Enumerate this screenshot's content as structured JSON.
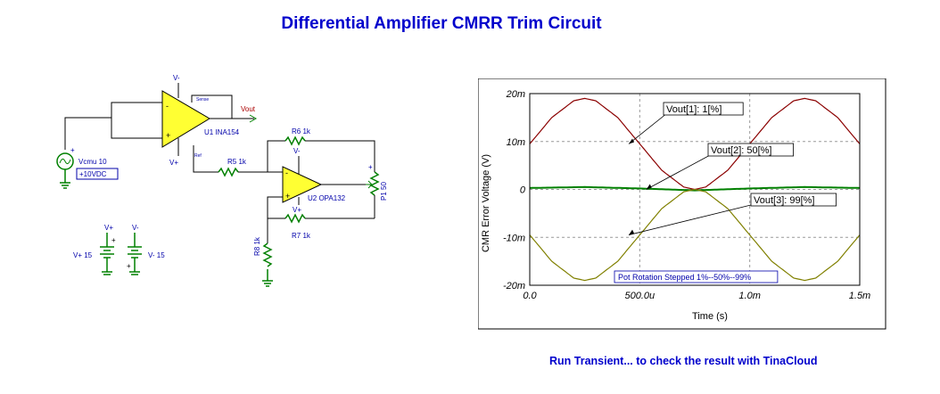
{
  "title": "Differential Amplifier CMRR Trim Circuit",
  "footer": "Run Transient... to check the result with TinaCloud",
  "schematic": {
    "vcm": {
      "name": "Vcmu 10",
      "dc": "+10VDC"
    },
    "u1": {
      "name": "U1 INA154",
      "vminus": "V-",
      "vplus": "V+",
      "sense": "Sense",
      "ref": "Ref"
    },
    "u2": {
      "name": "U2 OPA132",
      "vminus": "V-",
      "vplus": "V+"
    },
    "vout": "Vout",
    "r5": "R5 1k",
    "r6": "R6 1k",
    "r7": "R7 1k",
    "r8": "R8 1k",
    "p1": "P1 50",
    "vpos": {
      "label": "V+",
      "name": "V+ 15"
    },
    "vneg": {
      "label": "V-",
      "name": "V- 15"
    }
  },
  "chart_data": {
    "type": "line",
    "xlabel": "Time (s)",
    "ylabel": "CMR Error Voltage (V)",
    "xlim": [
      0,
      0.0015
    ],
    "ylim": [
      -0.02,
      0.02
    ],
    "xticks": [
      "0.0",
      "500.0u",
      "1.0m",
      "1.5m"
    ],
    "yticks": [
      "20m",
      "10m",
      "0",
      "-10m",
      "-20m"
    ],
    "grid": true,
    "series": [
      {
        "name": "Vout[1]: 1[%]",
        "color": "#8b0000",
        "x": [
          0,
          0.0001,
          0.0002,
          0.00025,
          0.0003,
          0.0004,
          0.0005,
          0.0006,
          0.0007,
          0.00075,
          0.0008,
          0.0009,
          0.001,
          0.0011,
          0.0012,
          0.00125,
          0.0013,
          0.0014,
          0.0015
        ],
        "y": [
          0.0095,
          0.015,
          0.0185,
          0.019,
          0.0185,
          0.015,
          0.0095,
          0.004,
          0.0005,
          0.0,
          0.0005,
          0.004,
          0.0095,
          0.015,
          0.0185,
          0.019,
          0.0185,
          0.015,
          0.0095
        ]
      },
      {
        "name": "Vout[2]: 50[%]",
        "color": "#008000",
        "x": [
          0,
          0.00025,
          0.0005,
          0.00075,
          0.001,
          0.00125,
          0.0015
        ],
        "y": [
          0.0003,
          0.0005,
          0.0002,
          -0.0002,
          0.0002,
          0.0005,
          0.0003
        ]
      },
      {
        "name": "Vout[3]: 99[%]",
        "color": "#808000",
        "x": [
          0,
          0.0001,
          0.0002,
          0.00025,
          0.0003,
          0.0004,
          0.0005,
          0.0006,
          0.0007,
          0.00075,
          0.0008,
          0.0009,
          0.001,
          0.0011,
          0.0012,
          0.00125,
          0.0013,
          0.0014,
          0.0015
        ],
        "y": [
          -0.0095,
          -0.015,
          -0.0185,
          -0.019,
          -0.0185,
          -0.015,
          -0.0095,
          -0.004,
          -0.0005,
          0.0,
          -0.0005,
          -0.004,
          -0.0095,
          -0.015,
          -0.0185,
          -0.019,
          -0.0185,
          -0.015,
          -0.0095
        ]
      }
    ],
    "annotation": "Pot Rotation Stepped 1%--50%--99%"
  }
}
